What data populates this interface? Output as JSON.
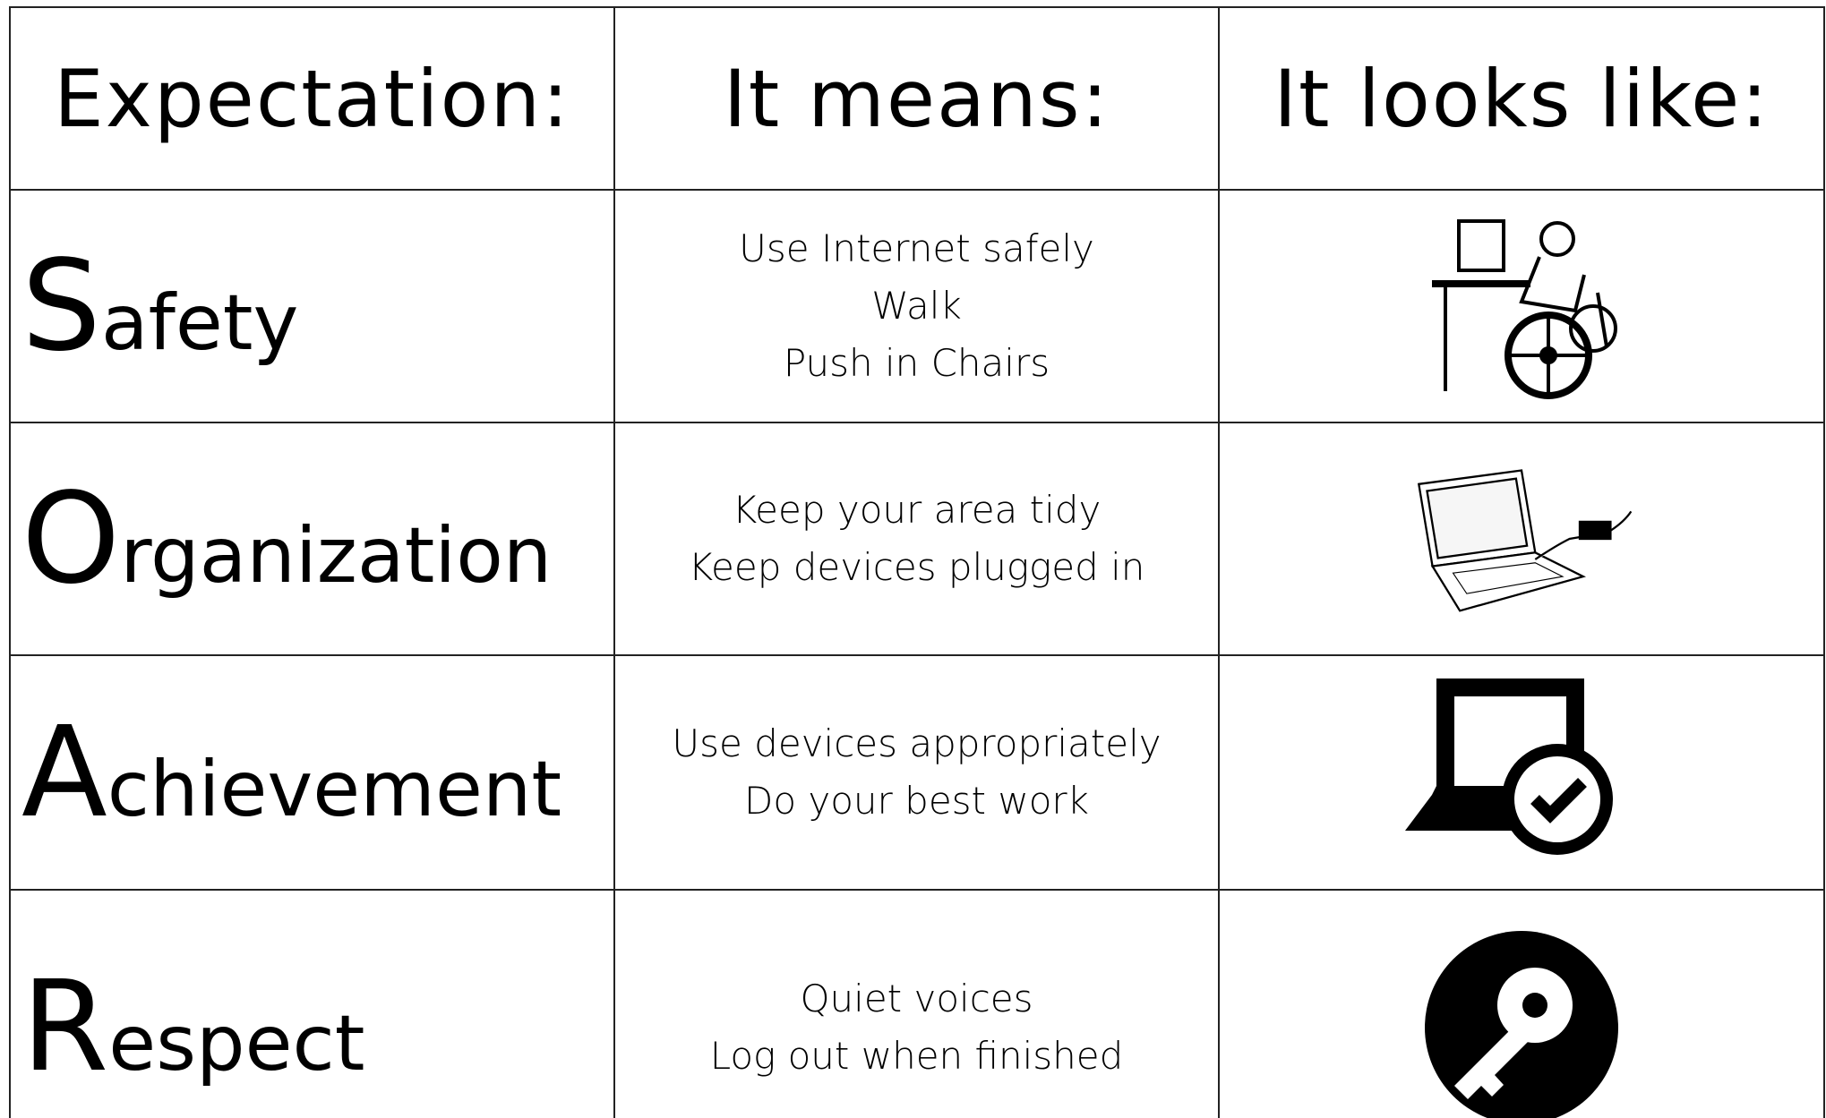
{
  "table": {
    "header": [
      "Expectation:",
      "It means:",
      "It looks like:"
    ],
    "rows": [
      {
        "expectation": "Safety",
        "means": [
          "Use Internet safely",
          "Walk",
          "Push in Chairs"
        ]
      },
      {
        "expectation": "Organization",
        "means": [
          "Keep your area tidy",
          "Keep devices plugged in"
        ]
      },
      {
        "expectation": "Achievement",
        "means": [
          "Use devices appropriately",
          "Do your best work"
        ]
      },
      {
        "expectation": "Respect",
        "means": [
          "Quiet voices",
          "Log out when finished"
        ]
      }
    ]
  }
}
